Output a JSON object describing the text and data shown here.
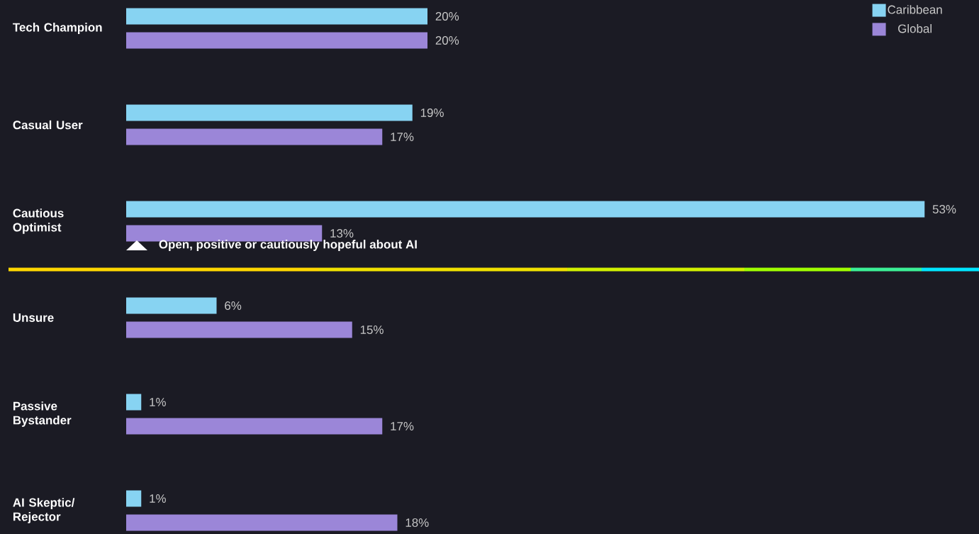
{
  "chart_data": {
    "type": "bar",
    "orientation": "horizontal",
    "categories": [
      "Tech Champion",
      "Casual User",
      "Cautious Optimist",
      "Unsure",
      "Passive Bystander",
      "AI Skeptic/ Rejector"
    ],
    "series": [
      {
        "name": "Caribbean",
        "color": "#87d3f2",
        "values": [
          20,
          19,
          53,
          6,
          1,
          1
        ],
        "value_labels": [
          "20%",
          "19%",
          "53%",
          "6%",
          "1%",
          "1%"
        ]
      },
      {
        "name": "Global",
        "color": "#9b86d8",
        "values": [
          20,
          17,
          13,
          15,
          17,
          18
        ],
        "value_labels": [
          "20%",
          "17%",
          "13%",
          "15%",
          "17%",
          "18%"
        ]
      }
    ],
    "legend": "top right",
    "annotations": [
      "Open, positive or cautiously hopeful about AI"
    ]
  }
}
